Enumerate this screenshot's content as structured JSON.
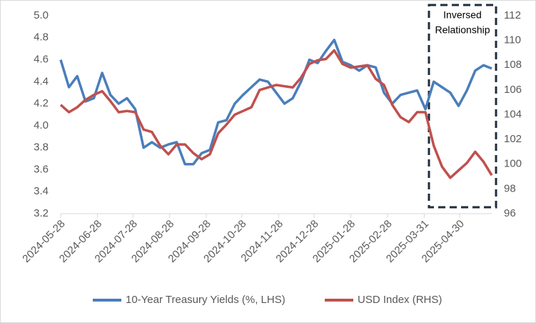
{
  "chart_data": {
    "type": "line",
    "x": [
      "2024-05-28",
      "2024-06-04",
      "2024-06-11",
      "2024-06-18",
      "2024-06-25",
      "2024-07-02",
      "2024-07-09",
      "2024-07-16",
      "2024-07-23",
      "2024-07-30",
      "2024-08-06",
      "2024-08-13",
      "2024-08-20",
      "2024-08-27",
      "2024-09-03",
      "2024-09-10",
      "2024-09-17",
      "2024-09-24",
      "2024-10-01",
      "2024-10-08",
      "2024-10-15",
      "2024-10-22",
      "2024-10-29",
      "2024-11-05",
      "2024-11-12",
      "2024-11-19",
      "2024-11-26",
      "2024-12-03",
      "2024-12-10",
      "2024-12-17",
      "2024-12-24",
      "2024-12-31",
      "2025-01-07",
      "2025-01-14",
      "2025-01-21",
      "2025-01-28",
      "2025-02-04",
      "2025-02-11",
      "2025-02-18",
      "2025-02-25",
      "2025-03-04",
      "2025-03-11",
      "2025-03-18",
      "2025-03-25",
      "2025-04-01",
      "2025-04-08",
      "2025-04-15",
      "2025-04-22",
      "2025-04-29",
      "2025-05-06",
      "2025-05-13",
      "2025-05-20",
      "2025-05-27"
    ],
    "xlim": [
      "2024-05-28",
      "2025-05-27"
    ],
    "xticks": [
      "2024-05-28",
      "2024-06-28",
      "2024-07-28",
      "2024-08-28",
      "2024-09-28",
      "2024-10-28",
      "2024-11-28",
      "2024-12-28",
      "2025-01-28",
      "2025-02-28",
      "2025-03-31",
      "2025-04-30"
    ],
    "series": [
      {
        "name": "10-Year Treasury Yields (%, LHS)",
        "color": "#4a7ebb",
        "values": [
          4.6,
          4.35,
          4.45,
          4.22,
          4.25,
          4.48,
          4.28,
          4.2,
          4.25,
          4.15,
          3.8,
          3.85,
          3.8,
          3.83,
          3.85,
          3.65,
          3.65,
          3.75,
          3.78,
          4.03,
          4.05,
          4.2,
          4.28,
          4.35,
          4.42,
          4.4,
          4.3,
          4.2,
          4.25,
          4.4,
          4.6,
          4.57,
          4.68,
          4.78,
          4.58,
          4.55,
          4.5,
          4.55,
          4.53,
          4.3,
          4.2,
          4.28,
          4.3,
          4.32,
          4.15,
          4.4,
          4.35,
          4.3,
          4.18,
          4.32,
          4.5,
          4.55,
          4.52
        ]
      },
      {
        "name": "USD Index (RHS)",
        "color": "#c0504d",
        "axis": "y2",
        "values": [
          104.8,
          104.2,
          104.6,
          105.2,
          105.6,
          105.9,
          105.1,
          104.2,
          104.3,
          104.2,
          102.8,
          102.6,
          101.5,
          100.8,
          101.6,
          101.6,
          100.9,
          100.4,
          100.8,
          102.5,
          103.2,
          104.0,
          104.3,
          104.6,
          106.0,
          106.2,
          106.4,
          106.3,
          106.2,
          107.0,
          108.1,
          108.4,
          108.5,
          109.2,
          108.1,
          107.8,
          107.9,
          108.0,
          106.9,
          106.4,
          104.8,
          103.8,
          103.4,
          104.2,
          104.2,
          101.5,
          99.8,
          98.9,
          99.5,
          100.1,
          101.0,
          100.2,
          99.1
        ]
      }
    ],
    "ylim": [
      3.2,
      5.0
    ],
    "yticks": [
      {
        "value": 3.2,
        "label": "3.2"
      },
      3.4,
      3.6,
      3.8,
      {
        "value": 4,
        "label": "4.0"
      },
      4.2,
      4.4,
      4.6,
      4.8,
      {
        "value": 5,
        "label": "5.0"
      }
    ],
    "y2lim": [
      96,
      112
    ],
    "y2ticks": [
      96,
      98,
      100,
      102,
      104,
      106,
      108,
      110,
      112
    ],
    "annotation": [
      "Inversed",
      "Relationship"
    ]
  }
}
